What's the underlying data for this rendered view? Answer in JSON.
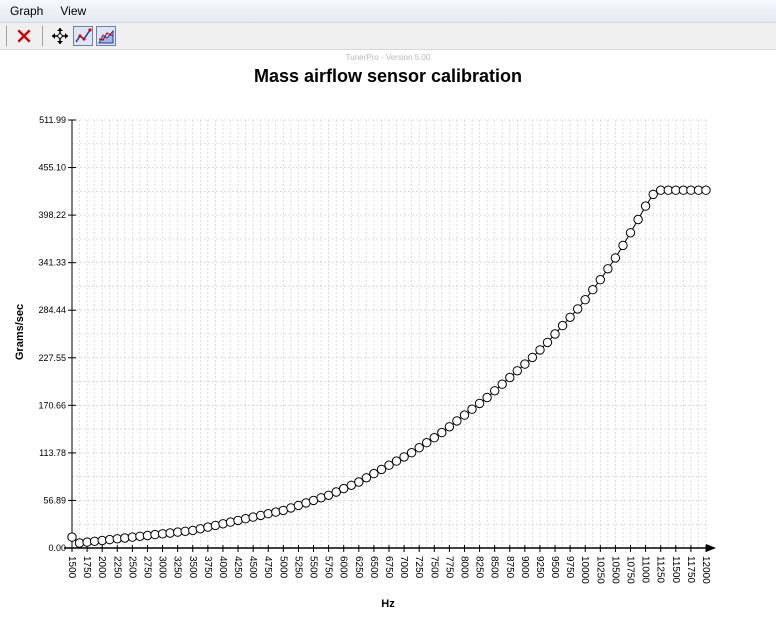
{
  "menu": {
    "graph": "Graph",
    "view": "View"
  },
  "toolbar": {
    "close_icon": "red-x-icon",
    "move_icon": "move-crosshair-icon",
    "line_graph_icon": "line-graph-icon",
    "area_graph_icon": "area-graph-icon"
  },
  "watermark": "TunerPro - Version 5.00",
  "chart_data": {
    "type": "line",
    "title": "Mass airflow sensor calibration",
    "xlabel": "Hz",
    "ylabel": "Grams/sec",
    "xlim": [
      1500,
      12000
    ],
    "ylim": [
      0,
      511.99
    ],
    "grid": true,
    "y_ticks": [
      "0.00",
      "56.89",
      "113.78",
      "170.66",
      "227.55",
      "284.44",
      "341.33",
      "398.22",
      "455.10",
      "511.99"
    ],
    "x_ticks": [
      "1500",
      "1750",
      "2000",
      "2250",
      "2500",
      "2750",
      "3000",
      "3250",
      "3500",
      "3750",
      "4000",
      "4250",
      "4500",
      "4750",
      "5000",
      "5250",
      "5500",
      "5750",
      "6000",
      "6250",
      "6500",
      "6750",
      "7000",
      "7250",
      "7500",
      "7750",
      "8000",
      "8250",
      "8500",
      "8750",
      "9000",
      "9250",
      "9500",
      "9750",
      "10000",
      "10250",
      "10500",
      "10750",
      "11000",
      "11250",
      "11500",
      "11750",
      "12000"
    ],
    "series": [
      {
        "marker": "circle-open",
        "x": [
          1500,
          1625,
          1750,
          1875,
          2000,
          2125,
          2250,
          2375,
          2500,
          2625,
          2750,
          2875,
          3000,
          3125,
          3250,
          3375,
          3500,
          3625,
          3750,
          3875,
          4000,
          4125,
          4250,
          4375,
          4500,
          4625,
          4750,
          4875,
          5000,
          5125,
          5250,
          5375,
          5500,
          5625,
          5750,
          5875,
          6000,
          6125,
          6250,
          6375,
          6500,
          6625,
          6750,
          6875,
          7000,
          7125,
          7250,
          7375,
          7500,
          7625,
          7750,
          7875,
          8000,
          8125,
          8250,
          8375,
          8500,
          8625,
          8750,
          8875,
          9000,
          9125,
          9250,
          9375,
          9500,
          9625,
          9750,
          9875,
          10000,
          10125,
          10250,
          10375,
          10500,
          10625,
          10750,
          10875,
          11000,
          11125,
          11250,
          11375,
          11500,
          11625,
          11750,
          11875,
          12000
        ],
        "y": [
          13,
          6,
          7,
          8,
          9,
          10,
          11,
          12,
          13,
          14,
          15,
          16,
          17,
          18,
          19,
          20,
          21,
          23,
          25,
          27,
          29,
          31,
          33,
          35,
          37,
          39,
          41,
          43,
          45,
          48,
          51,
          54,
          57,
          60,
          63,
          67,
          71,
          75,
          79,
          84,
          89,
          94,
          99,
          104,
          109,
          114,
          120,
          126,
          132,
          138,
          145,
          152,
          159,
          166,
          173,
          180,
          188,
          196,
          204,
          212,
          220,
          228,
          237,
          246,
          256,
          266,
          276,
          286,
          297,
          309,
          321,
          334,
          347,
          362,
          377,
          393,
          409,
          423,
          428,
          428,
          428,
          428,
          428,
          428,
          428
        ]
      }
    ]
  }
}
